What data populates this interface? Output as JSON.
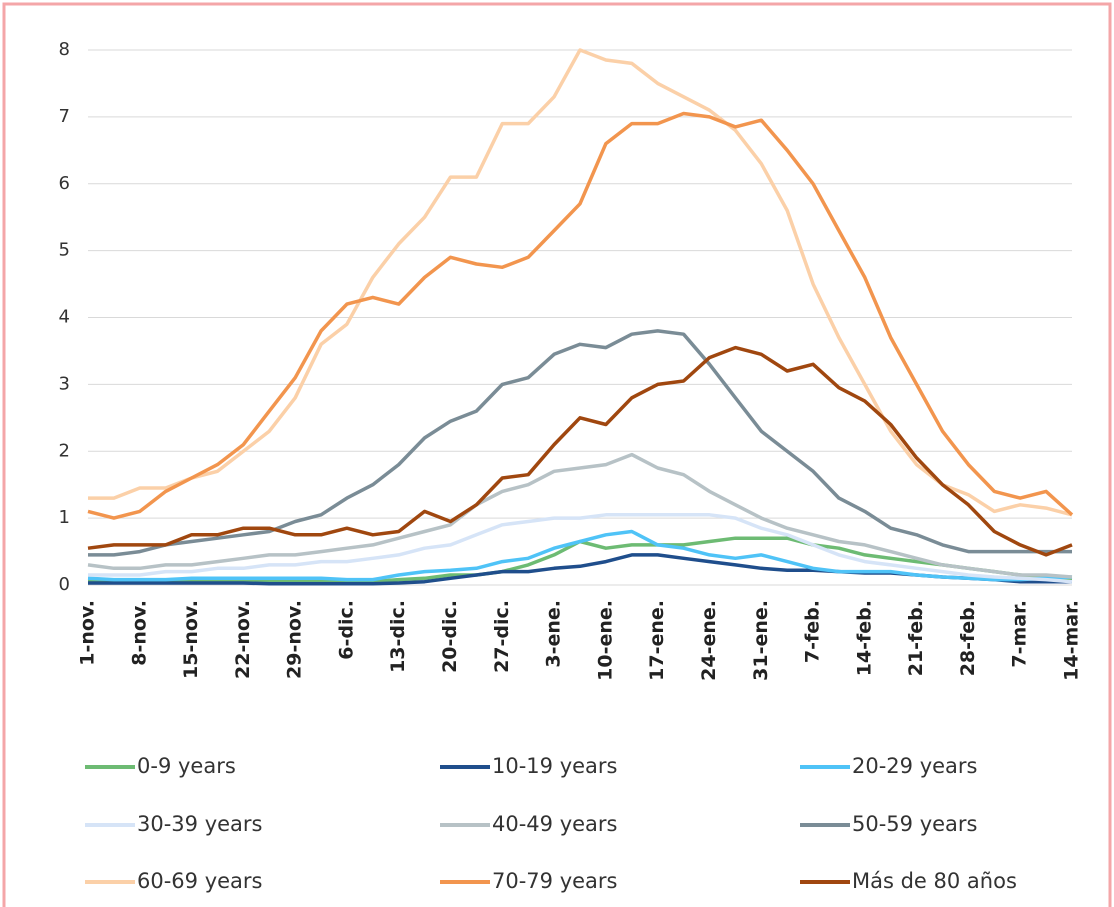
{
  "chart_data": {
    "type": "line",
    "categories": [
      "1-nov.",
      null,
      "8-nov.",
      null,
      "15-nov.",
      null,
      "22-nov.",
      null,
      "29-nov.",
      null,
      "6-dic.",
      null,
      "13-dic.",
      null,
      "20-dic.",
      null,
      "27-dic.",
      null,
      "3-ene.",
      null,
      "10-ene.",
      null,
      "17-ene.",
      null,
      "24-ene.",
      null,
      "31-ene.",
      null,
      "7-feb.",
      null,
      "14-feb.",
      null,
      "21-feb.",
      null,
      "28-feb.",
      null,
      "7-mar.",
      null,
      "14-mar."
    ],
    "ylim": [
      0,
      8
    ],
    "yticks": [
      0,
      1,
      2,
      3,
      4,
      5,
      6,
      7,
      8
    ],
    "grid": true,
    "legend": "bottom",
    "series": [
      {
        "name": "0-9 years",
        "color": "#6dbb73",
        "values": [
          0.05,
          0.05,
          0.05,
          0.05,
          0.05,
          0.05,
          0.05,
          0.05,
          0.05,
          0.05,
          0.05,
          0.05,
          0.08,
          0.1,
          0.15,
          0.15,
          0.2,
          0.3,
          0.45,
          0.65,
          0.55,
          0.6,
          0.6,
          0.6,
          0.65,
          0.7,
          0.7,
          0.7,
          0.6,
          0.55,
          0.45,
          0.4,
          0.35,
          0.3,
          0.25,
          0.2,
          0.15,
          0.1,
          0.1
        ]
      },
      {
        "name": "10-19 years",
        "color": "#1f4e8c",
        "values": [
          0.03,
          0.03,
          0.03,
          0.03,
          0.03,
          0.03,
          0.03,
          0.02,
          0.02,
          0.02,
          0.02,
          0.02,
          0.03,
          0.05,
          0.1,
          0.15,
          0.2,
          0.2,
          0.25,
          0.28,
          0.35,
          0.45,
          0.45,
          0.4,
          0.35,
          0.3,
          0.25,
          0.22,
          0.22,
          0.2,
          0.18,
          0.18,
          0.15,
          0.12,
          0.1,
          0.08,
          0.05,
          0.05,
          0.05
        ]
      },
      {
        "name": "20-29 years",
        "color": "#4fc3f7",
        "values": [
          0.1,
          0.08,
          0.08,
          0.08,
          0.1,
          0.1,
          0.1,
          0.1,
          0.1,
          0.1,
          0.08,
          0.08,
          0.15,
          0.2,
          0.22,
          0.25,
          0.35,
          0.4,
          0.55,
          0.65,
          0.75,
          0.8,
          0.6,
          0.55,
          0.45,
          0.4,
          0.45,
          0.35,
          0.25,
          0.2,
          0.2,
          0.2,
          0.15,
          0.12,
          0.1,
          0.08,
          0.08,
          0.1,
          0.12
        ]
      },
      {
        "name": "30-39 years",
        "color": "#d6e4f7",
        "values": [
          0.15,
          0.15,
          0.15,
          0.2,
          0.2,
          0.25,
          0.25,
          0.3,
          0.3,
          0.35,
          0.35,
          0.4,
          0.45,
          0.55,
          0.6,
          0.75,
          0.9,
          0.95,
          1.0,
          1.0,
          1.05,
          1.05,
          1.05,
          1.05,
          1.05,
          1.0,
          0.85,
          0.75,
          0.6,
          0.45,
          0.35,
          0.3,
          0.25,
          0.2,
          0.15,
          0.12,
          0.1,
          0.08,
          0.05
        ]
      },
      {
        "name": "40-49 years",
        "color": "#b7c2c6",
        "values": [
          0.3,
          0.25,
          0.25,
          0.3,
          0.3,
          0.35,
          0.4,
          0.45,
          0.45,
          0.5,
          0.55,
          0.6,
          0.7,
          0.8,
          0.9,
          1.2,
          1.4,
          1.5,
          1.7,
          1.75,
          1.8,
          1.95,
          1.75,
          1.65,
          1.4,
          1.2,
          1.0,
          0.85,
          0.75,
          0.65,
          0.6,
          0.5,
          0.4,
          0.3,
          0.25,
          0.2,
          0.15,
          0.15,
          0.12
        ]
      },
      {
        "name": "50-59 years",
        "color": "#7a8c96",
        "values": [
          0.45,
          0.45,
          0.5,
          0.6,
          0.65,
          0.7,
          0.75,
          0.8,
          0.95,
          1.05,
          1.3,
          1.5,
          1.8,
          2.2,
          2.45,
          2.6,
          3.0,
          3.1,
          3.45,
          3.6,
          3.55,
          3.75,
          3.8,
          3.75,
          3.3,
          2.8,
          2.3,
          2.0,
          1.7,
          1.3,
          1.1,
          0.85,
          0.75,
          0.6,
          0.5,
          0.5,
          0.5,
          0.5,
          0.5
        ]
      },
      {
        "name": "60-69 years",
        "color": "#fbd0a8",
        "values": [
          1.3,
          1.3,
          1.45,
          1.45,
          1.6,
          1.7,
          2.0,
          2.3,
          2.8,
          3.6,
          3.9,
          4.6,
          5.1,
          5.5,
          6.1,
          6.1,
          6.9,
          6.9,
          7.3,
          8.0,
          7.85,
          7.8,
          7.5,
          7.3,
          7.1,
          6.8,
          6.3,
          5.6,
          4.5,
          3.7,
          3.0,
          2.3,
          1.8,
          1.5,
          1.35,
          1.1,
          1.2,
          1.15,
          1.05
        ]
      },
      {
        "name": "70-79 years",
        "color": "#f2954e",
        "values": [
          1.1,
          1.0,
          1.1,
          1.4,
          1.6,
          1.8,
          2.1,
          2.6,
          3.1,
          3.8,
          4.2,
          4.3,
          4.2,
          4.6,
          4.9,
          4.8,
          4.75,
          4.9,
          5.3,
          5.7,
          6.6,
          6.9,
          6.9,
          7.05,
          7.0,
          6.85,
          6.95,
          6.5,
          6.0,
          5.3,
          4.6,
          3.7,
          3.0,
          2.3,
          1.8,
          1.4,
          1.3,
          1.4,
          1.05
        ]
      },
      {
        "name": "Más de 80 años",
        "color": "#a0470f",
        "values": [
          0.55,
          0.6,
          0.6,
          0.6,
          0.75,
          0.75,
          0.85,
          0.85,
          0.75,
          0.75,
          0.85,
          0.75,
          0.8,
          1.1,
          0.95,
          1.2,
          1.6,
          1.65,
          2.1,
          2.5,
          2.4,
          2.8,
          3.0,
          3.05,
          3.4,
          3.55,
          3.45,
          3.2,
          3.3,
          2.95,
          2.75,
          2.4,
          1.9,
          1.5,
          1.2,
          0.8,
          0.6,
          0.45,
          0.6
        ]
      }
    ]
  }
}
